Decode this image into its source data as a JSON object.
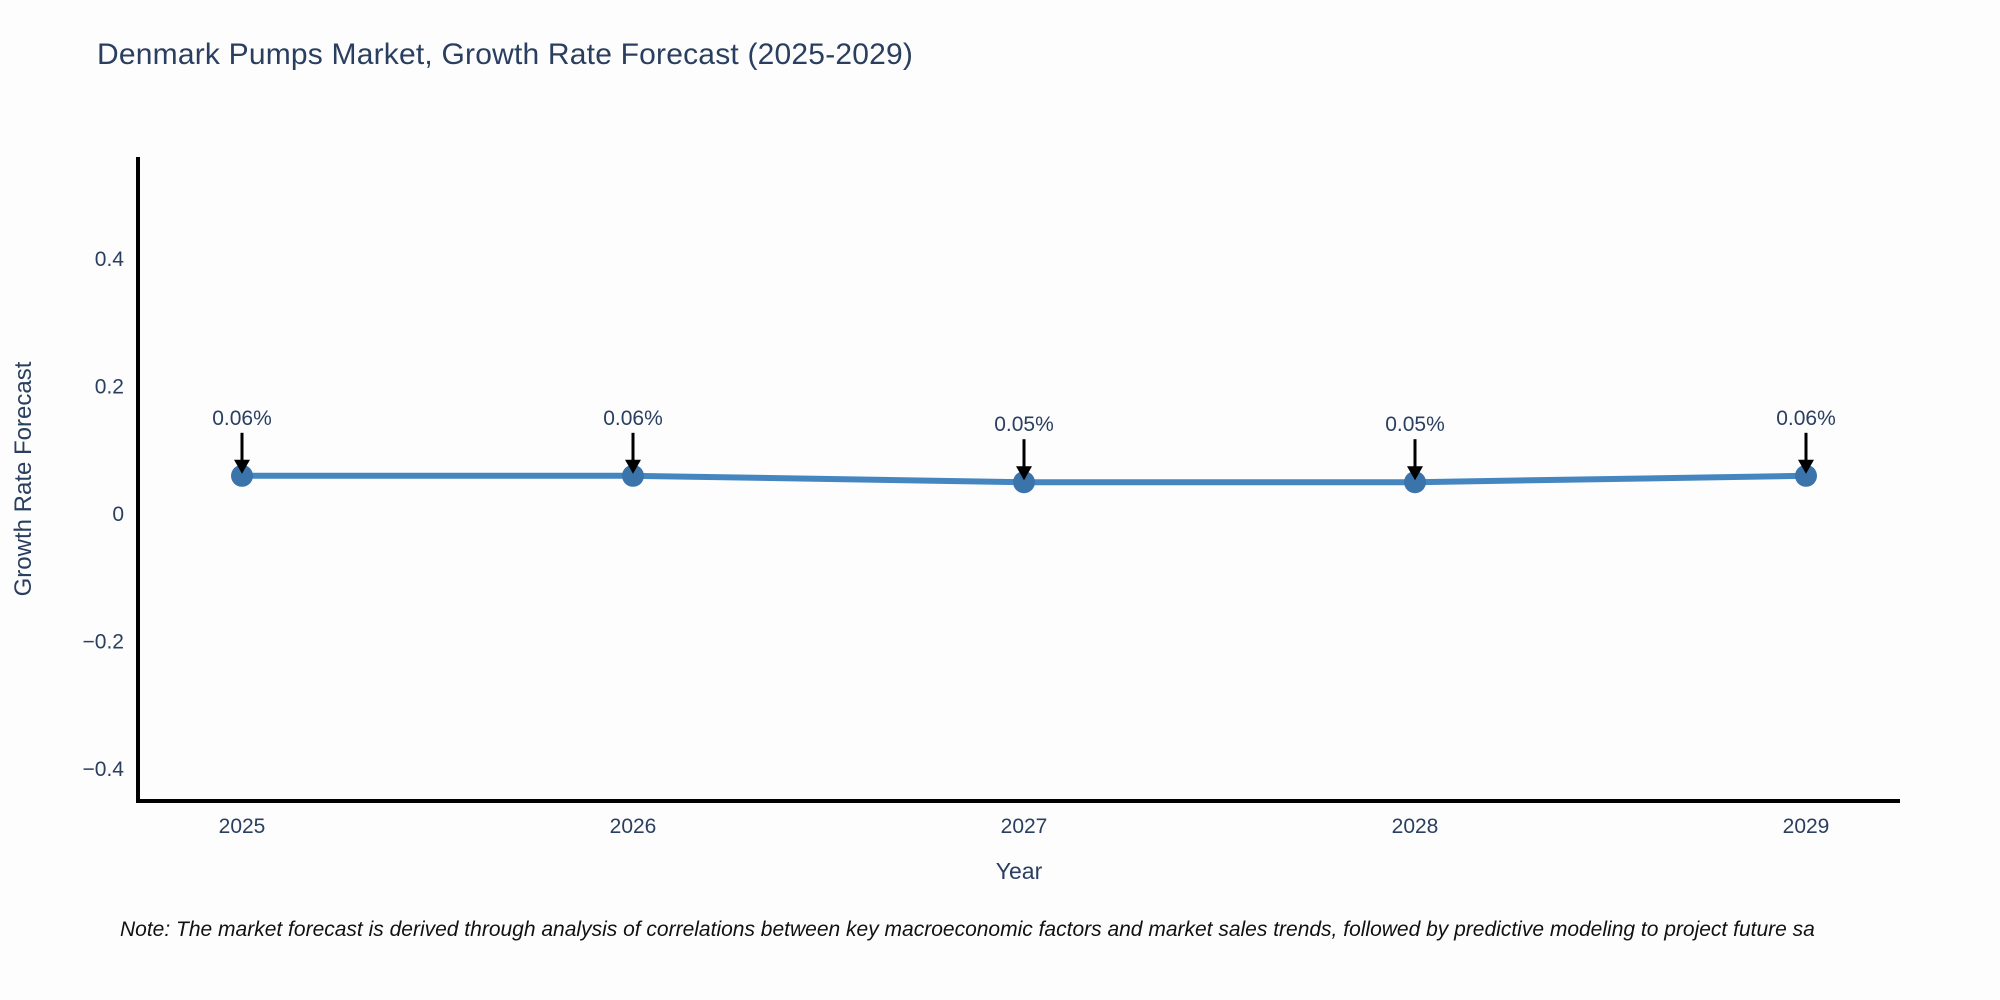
{
  "title": "Denmark Pumps Market, Growth Rate Forecast (2025-2029)",
  "note": "Note: The market forecast is derived through analysis of correlations between key macroeconomic factors and market sales trends, followed by predictive modeling to project future sa",
  "colors": {
    "background": "#fdfdfd",
    "title": "#2a3f5f",
    "tick": "#2a3f5f",
    "axis": "#000000",
    "line": "#4586c0",
    "marker": "#3b73ab",
    "annotation_text": "#2a3f5f",
    "arrow": "#000000",
    "note_text": "#111111"
  },
  "chart_data": {
    "type": "line",
    "title": "Denmark Pumps Market, Growth Rate Forecast (2025-2029)",
    "xlabel": "Year",
    "ylabel": "Growth Rate Forecast",
    "x": [
      2025,
      2026,
      2027,
      2028,
      2029
    ],
    "values": [
      0.06,
      0.06,
      0.05,
      0.05,
      0.06
    ],
    "point_labels": [
      "0.06%",
      "0.06%",
      "0.05%",
      "0.05%",
      "0.06%"
    ],
    "series": [
      {
        "name": "Growth Rate Forecast",
        "values": [
          0.06,
          0.06,
          0.05,
          0.05,
          0.06
        ]
      }
    ],
    "ylim": [
      -0.45,
      0.56
    ],
    "yticks": [
      0.4,
      0.2,
      0,
      -0.2,
      -0.4
    ],
    "ytick_labels": [
      "0.4",
      "0.2",
      "0",
      "−0.2",
      "−0.4"
    ],
    "xtick_labels": [
      "2025",
      "2026",
      "2027",
      "2028",
      "2029"
    ],
    "grid": false,
    "legend": "none",
    "marker_style": "circle",
    "annotations_have_arrows": true
  }
}
